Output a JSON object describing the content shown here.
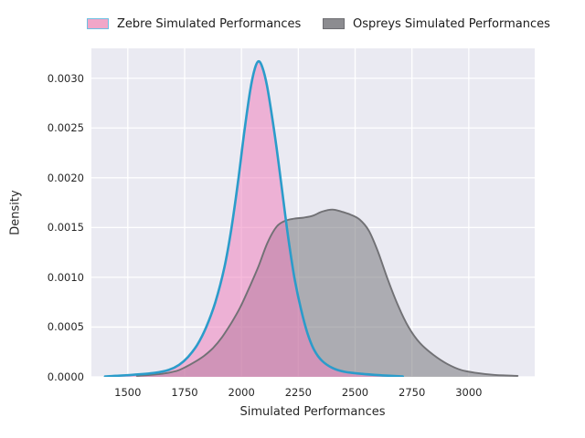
{
  "legend": {
    "entries": [
      {
        "label": "Zebre Simulated Performances",
        "swatch_fill": "#f0a6c8",
        "swatch_border": "#6cc0e2"
      },
      {
        "label": "Ospreys Simulated Performances",
        "swatch_fill": "#8c8c90",
        "swatch_border": "#6d6d71"
      }
    ]
  },
  "chart_data": {
    "type": "area",
    "title": "",
    "xlabel": "Simulated Performances",
    "ylabel": "Density",
    "xlim": [
      1340,
      3290
    ],
    "ylim": [
      0,
      0.0033
    ],
    "grid": true,
    "legend_position": "top",
    "background": "#eaeaf2",
    "gridline_color": "#ffffff",
    "xticks": {
      "values": [
        1500,
        1750,
        2000,
        2250,
        2500,
        2750,
        3000
      ],
      "labels": [
        "1500",
        "1750",
        "2000",
        "2250",
        "2500",
        "2750",
        "3000"
      ]
    },
    "yticks": {
      "values": [
        0,
        0.0005,
        0.001,
        0.0015,
        0.002,
        0.0025,
        0.003
      ],
      "labels": [
        "0.0000",
        "0.0005",
        "0.0010",
        "0.0015",
        "0.0020",
        "0.0025",
        "0.0030"
      ]
    },
    "series": [
      {
        "id": "ospreys",
        "name": "Ospreys Simulated Performances",
        "line_color": "#717175",
        "line_width": 1.9,
        "fill_color": "rgba(120,120,126,0.55)",
        "points": [
          [
            1540,
            1e-05
          ],
          [
            1650,
            3e-05
          ],
          [
            1715,
            6e-05
          ],
          [
            1755,
            0.0001
          ],
          [
            1795,
            0.00015
          ],
          [
            1835,
            0.00021
          ],
          [
            1875,
            0.00029
          ],
          [
            1915,
            0.0004
          ],
          [
            1955,
            0.00054
          ],
          [
            1995,
            0.0007
          ],
          [
            2035,
            0.0009
          ],
          [
            2075,
            0.00111
          ],
          [
            2115,
            0.00135
          ],
          [
            2155,
            0.00151
          ],
          [
            2195,
            0.00157
          ],
          [
            2235,
            0.00159
          ],
          [
            2275,
            0.0016
          ],
          [
            2315,
            0.00162
          ],
          [
            2355,
            0.00166
          ],
          [
            2400,
            0.00168
          ],
          [
            2440,
            0.00166
          ],
          [
            2480,
            0.00163
          ],
          [
            2520,
            0.00158
          ],
          [
            2560,
            0.00147
          ],
          [
            2600,
            0.00126
          ],
          [
            2645,
            0.00097
          ],
          [
            2690,
            0.00071
          ],
          [
            2735,
            0.0005
          ],
          [
            2785,
            0.00034
          ],
          [
            2845,
            0.00022
          ],
          [
            2905,
            0.00013
          ],
          [
            2965,
            7e-05
          ],
          [
            3030,
            4e-05
          ],
          [
            3110,
            2e-05
          ],
          [
            3215,
            1e-05
          ]
        ]
      },
      {
        "id": "zebre",
        "name": "Zebre Simulated Performances",
        "line_color": "#2b9cca",
        "line_width": 2.6,
        "fill_color": "rgba(238,130,190,0.55)",
        "points": [
          [
            1400,
            5e-06
          ],
          [
            1520,
            2e-05
          ],
          [
            1620,
            4e-05
          ],
          [
            1680,
            7e-05
          ],
          [
            1725,
            0.00012
          ],
          [
            1765,
            0.0002
          ],
          [
            1805,
            0.00032
          ],
          [
            1845,
            0.0005
          ],
          [
            1885,
            0.00075
          ],
          [
            1925,
            0.0011
          ],
          [
            1955,
            0.00148
          ],
          [
            1985,
            0.00196
          ],
          [
            2012,
            0.00245
          ],
          [
            2038,
            0.00287
          ],
          [
            2058,
            0.00309
          ],
          [
            2075,
            0.00317
          ],
          [
            2092,
            0.00311
          ],
          [
            2112,
            0.00293
          ],
          [
            2135,
            0.00261
          ],
          [
            2160,
            0.00221
          ],
          [
            2185,
            0.00176
          ],
          [
            2210,
            0.00133
          ],
          [
            2235,
            0.00097
          ],
          [
            2262,
            0.00068
          ],
          [
            2290,
            0.00044
          ],
          [
            2320,
            0.00027
          ],
          [
            2355,
            0.00016
          ],
          [
            2400,
            9e-05
          ],
          [
            2455,
            5e-05
          ],
          [
            2530,
            3e-05
          ],
          [
            2620,
            1.5e-05
          ],
          [
            2710,
            5e-06
          ]
        ]
      }
    ]
  }
}
